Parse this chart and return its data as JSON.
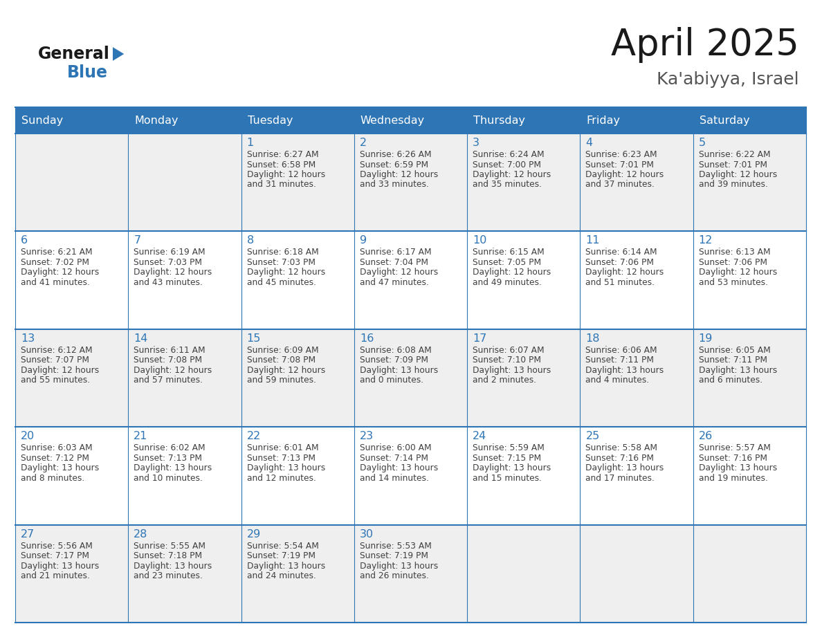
{
  "title": "April 2025",
  "subtitle": "Ka'abiyya, Israel",
  "days_of_week": [
    "Sunday",
    "Monday",
    "Tuesday",
    "Wednesday",
    "Thursday",
    "Friday",
    "Saturday"
  ],
  "header_bg": "#2E75B6",
  "header_text": "#FFFFFF",
  "row_bg_odd": "#EFEFEF",
  "row_bg_even": "#FFFFFF",
  "cell_border": "#2E75B6",
  "day_number_color": "#2E75B6",
  "text_color": "#404040",
  "title_color": "#1a1a1a",
  "subtitle_color": "#555555",
  "logo_general_color": "#1a1a1a",
  "logo_blue_color": "#2E75B6",
  "figsize": [
    11.88,
    9.18
  ],
  "dpi": 100,
  "calendar_data": [
    [
      {
        "day": null,
        "text": ""
      },
      {
        "day": null,
        "text": ""
      },
      {
        "day": 1,
        "text": "Sunrise: 6:27 AM\nSunset: 6:58 PM\nDaylight: 12 hours\nand 31 minutes."
      },
      {
        "day": 2,
        "text": "Sunrise: 6:26 AM\nSunset: 6:59 PM\nDaylight: 12 hours\nand 33 minutes."
      },
      {
        "day": 3,
        "text": "Sunrise: 6:24 AM\nSunset: 7:00 PM\nDaylight: 12 hours\nand 35 minutes."
      },
      {
        "day": 4,
        "text": "Sunrise: 6:23 AM\nSunset: 7:01 PM\nDaylight: 12 hours\nand 37 minutes."
      },
      {
        "day": 5,
        "text": "Sunrise: 6:22 AM\nSunset: 7:01 PM\nDaylight: 12 hours\nand 39 minutes."
      }
    ],
    [
      {
        "day": 6,
        "text": "Sunrise: 6:21 AM\nSunset: 7:02 PM\nDaylight: 12 hours\nand 41 minutes."
      },
      {
        "day": 7,
        "text": "Sunrise: 6:19 AM\nSunset: 7:03 PM\nDaylight: 12 hours\nand 43 minutes."
      },
      {
        "day": 8,
        "text": "Sunrise: 6:18 AM\nSunset: 7:03 PM\nDaylight: 12 hours\nand 45 minutes."
      },
      {
        "day": 9,
        "text": "Sunrise: 6:17 AM\nSunset: 7:04 PM\nDaylight: 12 hours\nand 47 minutes."
      },
      {
        "day": 10,
        "text": "Sunrise: 6:15 AM\nSunset: 7:05 PM\nDaylight: 12 hours\nand 49 minutes."
      },
      {
        "day": 11,
        "text": "Sunrise: 6:14 AM\nSunset: 7:06 PM\nDaylight: 12 hours\nand 51 minutes."
      },
      {
        "day": 12,
        "text": "Sunrise: 6:13 AM\nSunset: 7:06 PM\nDaylight: 12 hours\nand 53 minutes."
      }
    ],
    [
      {
        "day": 13,
        "text": "Sunrise: 6:12 AM\nSunset: 7:07 PM\nDaylight: 12 hours\nand 55 minutes."
      },
      {
        "day": 14,
        "text": "Sunrise: 6:11 AM\nSunset: 7:08 PM\nDaylight: 12 hours\nand 57 minutes."
      },
      {
        "day": 15,
        "text": "Sunrise: 6:09 AM\nSunset: 7:08 PM\nDaylight: 12 hours\nand 59 minutes."
      },
      {
        "day": 16,
        "text": "Sunrise: 6:08 AM\nSunset: 7:09 PM\nDaylight: 13 hours\nand 0 minutes."
      },
      {
        "day": 17,
        "text": "Sunrise: 6:07 AM\nSunset: 7:10 PM\nDaylight: 13 hours\nand 2 minutes."
      },
      {
        "day": 18,
        "text": "Sunrise: 6:06 AM\nSunset: 7:11 PM\nDaylight: 13 hours\nand 4 minutes."
      },
      {
        "day": 19,
        "text": "Sunrise: 6:05 AM\nSunset: 7:11 PM\nDaylight: 13 hours\nand 6 minutes."
      }
    ],
    [
      {
        "day": 20,
        "text": "Sunrise: 6:03 AM\nSunset: 7:12 PM\nDaylight: 13 hours\nand 8 minutes."
      },
      {
        "day": 21,
        "text": "Sunrise: 6:02 AM\nSunset: 7:13 PM\nDaylight: 13 hours\nand 10 minutes."
      },
      {
        "day": 22,
        "text": "Sunrise: 6:01 AM\nSunset: 7:13 PM\nDaylight: 13 hours\nand 12 minutes."
      },
      {
        "day": 23,
        "text": "Sunrise: 6:00 AM\nSunset: 7:14 PM\nDaylight: 13 hours\nand 14 minutes."
      },
      {
        "day": 24,
        "text": "Sunrise: 5:59 AM\nSunset: 7:15 PM\nDaylight: 13 hours\nand 15 minutes."
      },
      {
        "day": 25,
        "text": "Sunrise: 5:58 AM\nSunset: 7:16 PM\nDaylight: 13 hours\nand 17 minutes."
      },
      {
        "day": 26,
        "text": "Sunrise: 5:57 AM\nSunset: 7:16 PM\nDaylight: 13 hours\nand 19 minutes."
      }
    ],
    [
      {
        "day": 27,
        "text": "Sunrise: 5:56 AM\nSunset: 7:17 PM\nDaylight: 13 hours\nand 21 minutes."
      },
      {
        "day": 28,
        "text": "Sunrise: 5:55 AM\nSunset: 7:18 PM\nDaylight: 13 hours\nand 23 minutes."
      },
      {
        "day": 29,
        "text": "Sunrise: 5:54 AM\nSunset: 7:19 PM\nDaylight: 13 hours\nand 24 minutes."
      },
      {
        "day": 30,
        "text": "Sunrise: 5:53 AM\nSunset: 7:19 PM\nDaylight: 13 hours\nand 26 minutes."
      },
      {
        "day": null,
        "text": ""
      },
      {
        "day": null,
        "text": ""
      },
      {
        "day": null,
        "text": ""
      }
    ]
  ]
}
